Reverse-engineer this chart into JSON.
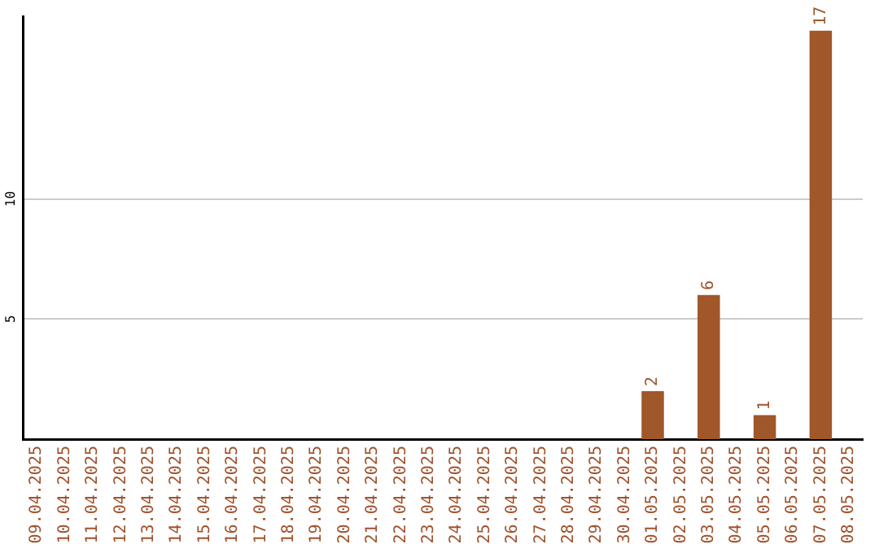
{
  "chart_data": {
    "type": "bar",
    "categories": [
      "09.04.2025",
      "10.04.2025",
      "11.04.2025",
      "12.04.2025",
      "13.04.2025",
      "14.04.2025",
      "15.04.2025",
      "16.04.2025",
      "17.04.2025",
      "18.04.2025",
      "19.04.2025",
      "20.04.2025",
      "21.04.2025",
      "22.04.2025",
      "23.04.2025",
      "24.04.2025",
      "25.04.2025",
      "26.04.2025",
      "27.04.2025",
      "28.04.2025",
      "29.04.2025",
      "30.04.2025",
      "01.05.2025",
      "02.05.2025",
      "03.05.2025",
      "04.05.2025",
      "05.05.2025",
      "06.05.2025",
      "07.05.2025",
      "08.05.2025"
    ],
    "values": [
      null,
      null,
      null,
      null,
      null,
      null,
      null,
      null,
      null,
      null,
      null,
      null,
      null,
      null,
      null,
      null,
      null,
      null,
      null,
      null,
      null,
      null,
      2,
      null,
      6,
      null,
      1,
      null,
      17,
      null
    ],
    "color": "#a0572a",
    "ylim": [
      0,
      17.6
    ],
    "yticks": [
      5,
      10
    ],
    "grid": "y",
    "data_labels": true,
    "legend": false
  }
}
